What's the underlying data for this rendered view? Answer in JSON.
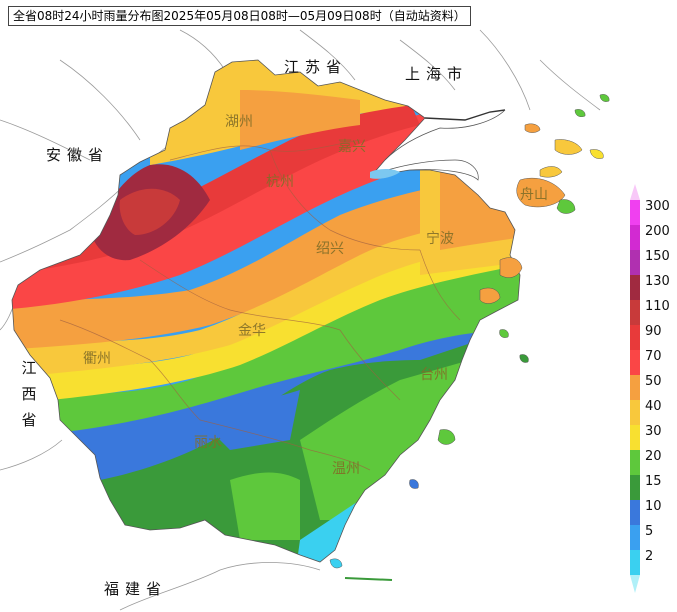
{
  "title": "全省08时24小时雨量分布图2025年05月08日08时—05月09日08时（自动站资料）",
  "provinces": {
    "jiangsu": "江苏省",
    "shanghai": "上海市",
    "anhui": "安徽省",
    "jiangxi": "江西省",
    "fujian": "福建省"
  },
  "cities": {
    "huzhou": "湖州",
    "jiaxing": "嘉兴",
    "hangzhou": "杭州",
    "zhoushan": "舟山",
    "shaoxing": "绍兴",
    "ningbo": "宁波",
    "jinhua": "金华",
    "quzhou": "衢州",
    "taizhou": "台州",
    "lishui": "丽水",
    "wenzhou": "温州"
  },
  "legend": {
    "levels": [
      {
        "label": "300",
        "color": "#f040f0"
      },
      {
        "label": "200",
        "color": "#d22ad2"
      },
      {
        "label": "150",
        "color": "#b030b0"
      },
      {
        "label": "130",
        "color": "#a02a40"
      },
      {
        "label": "110",
        "color": "#c83a3a"
      },
      {
        "label": "90",
        "color": "#e83a3a"
      },
      {
        "label": "70",
        "color": "#fa4646"
      },
      {
        "label": "50",
        "color": "#f5a040"
      },
      {
        "label": "40",
        "color": "#f8c83c"
      },
      {
        "label": "30",
        "color": "#f8e030"
      },
      {
        "label": "20",
        "color": "#5ec83c"
      },
      {
        "label": "15",
        "color": "#3a9a3a"
      },
      {
        "label": "10",
        "color": "#3a78dc"
      },
      {
        "label": "5",
        "color": "#3aa0f0"
      },
      {
        "label": "2",
        "color": "#3ad0f0"
      }
    ]
  }
}
